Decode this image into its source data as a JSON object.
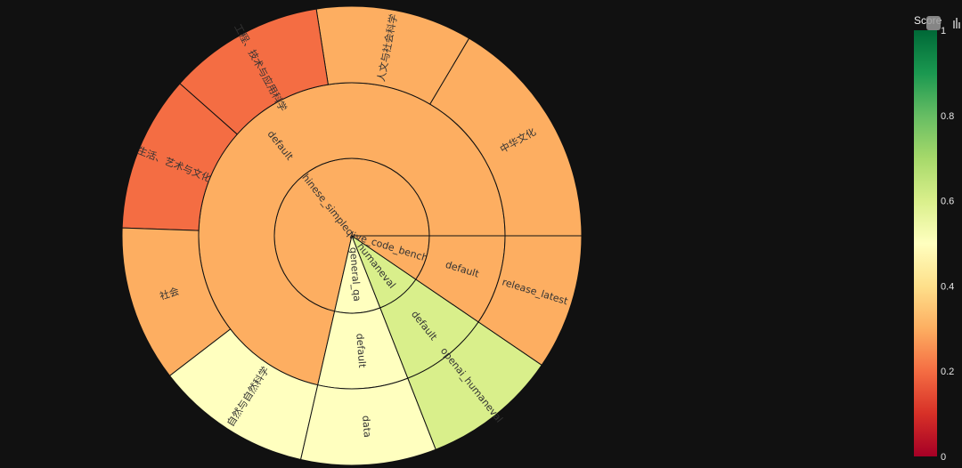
{
  "chart_data": {
    "type": "sunburst",
    "colorbar": {
      "title": "Score",
      "range": [
        0,
        1
      ],
      "ticks": [
        "0",
        "0.2",
        "0.4",
        "0.6",
        "0.8",
        "1"
      ],
      "tick_values": [
        0,
        0.2,
        0.4,
        0.6,
        0.8,
        1
      ],
      "colorscale": "RdYlGn"
    },
    "nodes": [
      {
        "id": "cs",
        "label": "chinese_simpleqa",
        "parent": "",
        "value": 15,
        "score": 0.3
      },
      {
        "id": "cs-def",
        "label": "default",
        "parent": "cs",
        "value": 15,
        "score": 0.3
      },
      {
        "id": "c1",
        "label": "中华文化",
        "parent": "cs-def",
        "value": 3,
        "score": 0.3
      },
      {
        "id": "c2",
        "label": "人文与社会科学",
        "parent": "cs-def",
        "value": 2,
        "score": 0.3
      },
      {
        "id": "c3",
        "label": "工程、技术与应用科学",
        "parent": "cs-def",
        "value": 2,
        "score": 0.2
      },
      {
        "id": "c4",
        "label": "生活、艺术与文化",
        "parent": "cs-def",
        "value": 2,
        "score": 0.2
      },
      {
        "id": "c5",
        "label": "社会",
        "parent": "cs-def",
        "value": 2,
        "score": 0.3
      },
      {
        "id": "c6",
        "label": "自然与自然科学",
        "parent": "cs-def",
        "value": 2,
        "score": 0.5
      },
      {
        "id": "gq",
        "label": "general_qa",
        "parent": "",
        "value": 2,
        "score": 0.5
      },
      {
        "id": "gq-def",
        "label": "default",
        "parent": "gq",
        "value": 2,
        "score": 0.5
      },
      {
        "id": "gq-data",
        "label": "data",
        "parent": "gq-def",
        "value": 2,
        "score": 0.5
      },
      {
        "id": "he",
        "label": "humaneval",
        "parent": "",
        "value": 2,
        "score": 0.6
      },
      {
        "id": "he-def",
        "label": "default",
        "parent": "he",
        "value": 2,
        "score": 0.6
      },
      {
        "id": "he-oh",
        "label": "openai_humaneval",
        "parent": "he-def",
        "value": 2,
        "score": 0.6
      },
      {
        "id": "lcb",
        "label": "live_code_bench",
        "parent": "",
        "value": 2,
        "score": 0.3
      },
      {
        "id": "lcb-def",
        "label": "default",
        "parent": "lcb",
        "value": 2,
        "score": 0.3
      },
      {
        "id": "lcb-rl",
        "label": "release_latest",
        "parent": "lcb-def",
        "value": 2,
        "score": 0.3
      }
    ]
  }
}
